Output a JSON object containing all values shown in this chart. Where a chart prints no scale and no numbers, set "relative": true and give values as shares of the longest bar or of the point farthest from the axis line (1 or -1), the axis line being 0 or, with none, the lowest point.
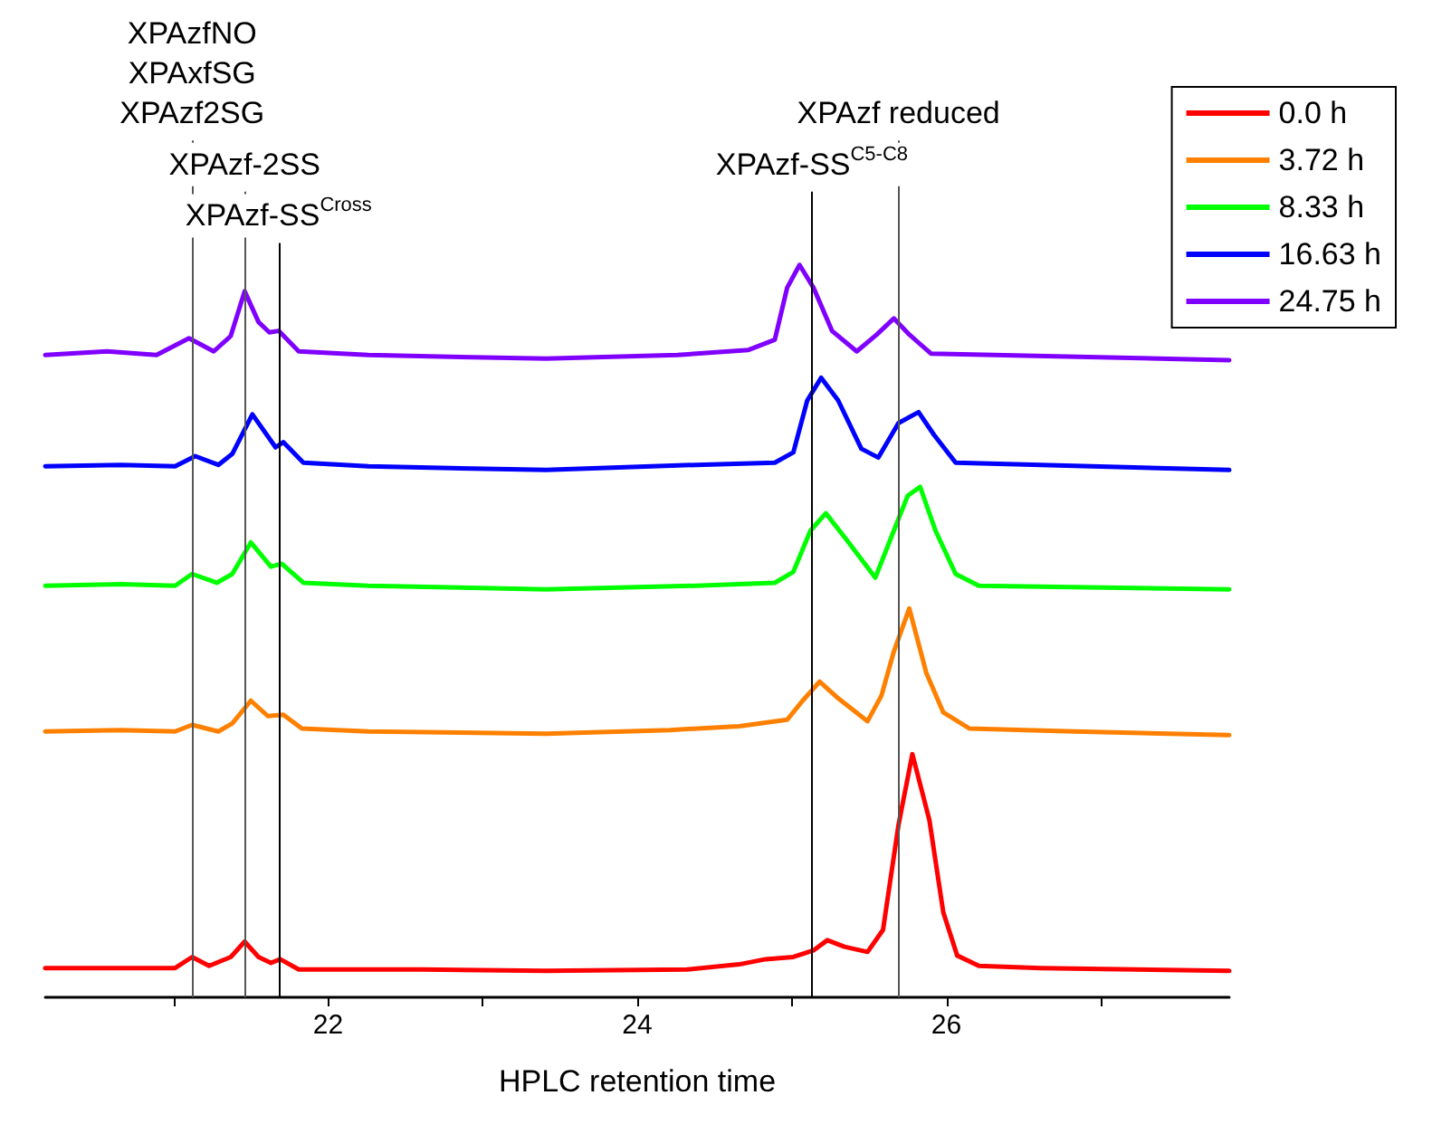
{
  "chart_data": {
    "type": "line",
    "relative": true,
    "xlabel": "HPLC retention time",
    "xlim": [
      20.17,
      27.83
    ],
    "xticks": [
      {
        "value": 21,
        "label": null
      },
      22,
      {
        "value": 23,
        "label": null
      },
      24,
      {
        "value": 25,
        "label": null
      },
      26,
      {
        "value": 27,
        "label": null
      }
    ],
    "grid": false,
    "legend": "top right",
    "marker": "none",
    "line_style": "solid",
    "ref_lines": [
      {
        "axis": "x",
        "value": 21.12,
        "label": "XPAzfNO\nXPAxfSG\nXPAzf2SG",
        "color": "#555555"
      },
      {
        "axis": "x",
        "value": 21.46,
        "label": "XPAzf-2SS",
        "color": "#555555"
      },
      {
        "axis": "x",
        "value": 21.68,
        "label": "XPAzf-SS$^{Cross}$",
        "color": "#000000"
      },
      {
        "axis": "x",
        "value": 25.13,
        "label": "XPAzf-SS$^{C5-C8}$",
        "color": "#000000"
      },
      {
        "axis": "x",
        "value": 25.69,
        "label": "XPAzf reduced",
        "color": "#555555"
      }
    ],
    "series": [
      {
        "name": "0.0 h",
        "color": "#ff0000",
        "x": [
          20.17,
          20.66,
          21.01,
          21.12,
          21.23,
          21.37,
          21.46,
          21.55,
          21.63,
          21.69,
          21.81,
          22.61,
          23.41,
          24.32,
          24.66,
          24.83,
          25.01,
          25.14,
          25.23,
          25.34,
          25.49,
          25.59,
          25.69,
          25.78,
          25.89,
          25.98,
          26.07,
          26.21,
          26.61,
          27.83
        ],
        "values": [
          0.04,
          0.04,
          0.04,
          0.055,
          0.043,
          0.055,
          0.076,
          0.055,
          0.047,
          0.052,
          0.038,
          0.038,
          0.036,
          0.038,
          0.045,
          0.052,
          0.055,
          0.064,
          0.078,
          0.069,
          0.062,
          0.092,
          0.235,
          0.332,
          0.242,
          0.116,
          0.057,
          0.043,
          0.04,
          0.036
        ]
      },
      {
        "name": "3.72 h",
        "color": "#ff8000",
        "x": [
          20.17,
          20.66,
          21.01,
          21.12,
          21.29,
          21.38,
          21.5,
          21.61,
          21.71,
          21.83,
          22.26,
          23.41,
          24.21,
          24.66,
          24.97,
          25.07,
          25.18,
          25.29,
          25.49,
          25.58,
          25.66,
          25.76,
          25.87,
          25.98,
          26.15,
          26.83,
          27.83
        ],
        "values": [
          0.363,
          0.365,
          0.363,
          0.372,
          0.363,
          0.374,
          0.405,
          0.384,
          0.386,
          0.367,
          0.363,
          0.36,
          0.365,
          0.37,
          0.379,
          0.405,
          0.431,
          0.41,
          0.377,
          0.412,
          0.472,
          0.531,
          0.443,
          0.389,
          0.367,
          0.363,
          0.358
        ]
      },
      {
        "name": "8.33 h",
        "color": "#00ff00",
        "x": [
          20.17,
          20.66,
          21.01,
          21.12,
          21.28,
          21.38,
          21.5,
          21.63,
          21.7,
          21.84,
          22.26,
          23.41,
          24.38,
          24.89,
          25.01,
          25.12,
          25.22,
          25.35,
          25.54,
          25.66,
          25.75,
          25.83,
          25.93,
          26.06,
          26.21,
          27.83
        ],
        "values": [
          0.562,
          0.564,
          0.562,
          0.578,
          0.566,
          0.578,
          0.621,
          0.588,
          0.592,
          0.566,
          0.562,
          0.557,
          0.562,
          0.566,
          0.581,
          0.637,
          0.661,
          0.626,
          0.573,
          0.637,
          0.685,
          0.697,
          0.637,
          0.578,
          0.562,
          0.557
        ]
      },
      {
        "name": "16.63 h",
        "color": "#0000ff",
        "x": [
          20.17,
          20.66,
          21.01,
          21.14,
          21.29,
          21.38,
          21.51,
          21.66,
          21.71,
          21.84,
          22.26,
          23.41,
          24.38,
          24.89,
          25.01,
          25.1,
          25.19,
          25.3,
          25.45,
          25.56,
          25.69,
          25.82,
          25.92,
          26.06,
          27.83
        ],
        "values": [
          0.725,
          0.727,
          0.725,
          0.739,
          0.727,
          0.742,
          0.796,
          0.751,
          0.758,
          0.73,
          0.725,
          0.72,
          0.727,
          0.73,
          0.744,
          0.815,
          0.846,
          0.815,
          0.749,
          0.737,
          0.784,
          0.799,
          0.768,
          0.73,
          0.72
        ]
      },
      {
        "name": "24.75 h",
        "color": "#8000ff",
        "x": [
          20.17,
          20.57,
          20.89,
          21.1,
          21.26,
          21.37,
          21.46,
          21.55,
          21.62,
          21.68,
          21.81,
          22.26,
          23.41,
          24.26,
          24.72,
          24.89,
          24.97,
          25.05,
          25.14,
          25.26,
          25.42,
          25.55,
          25.66,
          25.76,
          25.9,
          27.83
        ],
        "values": [
          0.877,
          0.882,
          0.877,
          0.9,
          0.882,
          0.903,
          0.964,
          0.922,
          0.908,
          0.91,
          0.882,
          0.877,
          0.872,
          0.877,
          0.884,
          0.898,
          0.969,
          1.0,
          0.969,
          0.91,
          0.882,
          0.905,
          0.927,
          0.905,
          0.879,
          0.87
        ]
      }
    ]
  }
}
